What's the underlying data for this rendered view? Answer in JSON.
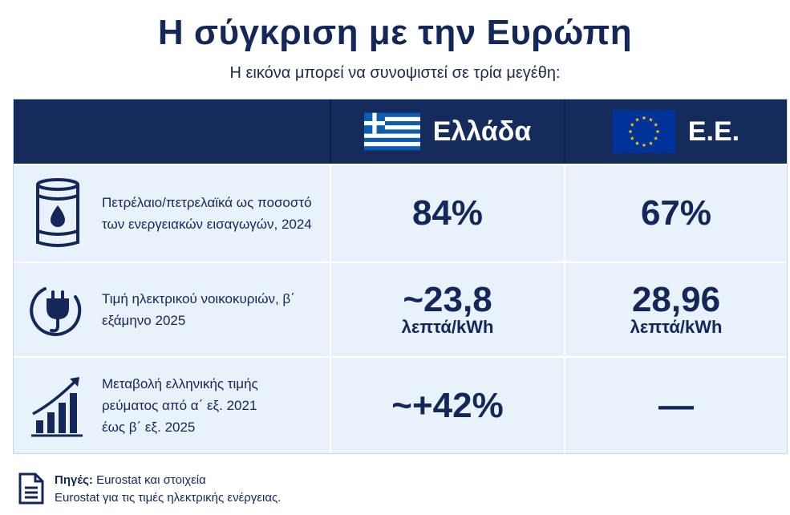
{
  "title": "Η σύγκριση με την Ευρώπη",
  "subtitle": "Η εικόνα μπορεί να συνοψιστεί σε τρία μεγέθη:",
  "columns": {
    "greece": "Ελλάδα",
    "eu": "Ε.Ε."
  },
  "rows": [
    {
      "indicator_line1": "Πετρέλαιο/πετρελαϊκά ως ποσοστό",
      "indicator_line2": "των ενεργειακών εισαγωγών, 2024",
      "indicator_line3": "",
      "greece_value": "84%",
      "greece_unit": "",
      "eu_value": "67%",
      "eu_unit": "",
      "icon": "oil-barrel-icon"
    },
    {
      "indicator_line1": "Τιμή ηλεκτρικού νοικοκυριών, β΄",
      "indicator_line2": "εξάμηνο 2025",
      "indicator_line3": "",
      "greece_value": "~23,8",
      "greece_unit": "λεπτά/kWh",
      "eu_value": "28,96",
      "eu_unit": "λεπτά/kWh",
      "icon": "electric-plug-icon"
    },
    {
      "indicator_line1": "Μεταβολή ελληνικής τιμής",
      "indicator_line2": "ρεύματος από α΄ εξ. 2021",
      "indicator_line3": "έως β΄ εξ. 2025",
      "greece_value": "~+42%",
      "greece_unit": "",
      "eu_value": "—",
      "eu_unit": "",
      "icon": "rising-bar-chart-icon"
    }
  ],
  "footer": {
    "sources_label": "Πηγές:",
    "sources_line1": "Eurostat και στοιχεία",
    "sources_line2": "Eurostat για τις τιμές ηλεκτρικής ενέργειας.",
    "icon": "document-icon"
  },
  "colors": {
    "navy": "#152b5c",
    "row_bg": "#e9f1fb",
    "greek_blue": "#0d5eaf",
    "eu_blue": "#003399",
    "eu_star": "#ffcc00"
  }
}
